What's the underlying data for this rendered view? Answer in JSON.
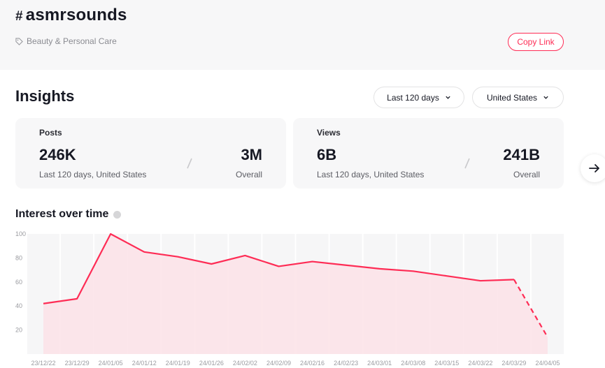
{
  "header": {
    "hash_symbol": "#",
    "hashtag": "asmrsounds",
    "industry": "Beauty & Personal Care",
    "copy_link_label": "Copy Link"
  },
  "insights": {
    "title": "Insights",
    "period_select": "Last 120 days",
    "region_select": "United States"
  },
  "cards": {
    "posts": {
      "label": "Posts",
      "recent_value": "246K",
      "recent_caption": "Last 120 days, United States",
      "overall_value": "3M",
      "overall_caption": "Overall"
    },
    "views": {
      "label": "Views",
      "recent_value": "6B",
      "recent_caption": "Last 120 days, United States",
      "overall_value": "241B",
      "overall_caption": "Overall"
    }
  },
  "icons": {
    "industry": "tag-icon",
    "select": "chevron-down-icon",
    "next": "arrow-right-icon",
    "help": "question-circle-icon"
  },
  "colors": {
    "accent": "#fe2c55",
    "area_fill": "#fbe2e8",
    "panel": "#f7f7f8"
  },
  "chart_data": {
    "type": "line",
    "title": "Interest over time",
    "xlabel": "",
    "ylabel": "",
    "ylim": [
      0,
      100
    ],
    "yticks": [
      20,
      40,
      60,
      80,
      100
    ],
    "categories": [
      "23/12/22",
      "23/12/29",
      "24/01/05",
      "24/01/12",
      "24/01/19",
      "24/01/26",
      "24/02/02",
      "24/02/09",
      "24/02/16",
      "24/02/23",
      "24/03/01",
      "24/03/08",
      "24/03/15",
      "24/03/22",
      "24/03/29",
      "24/04/05"
    ],
    "series": [
      {
        "name": "Interest",
        "values": [
          42,
          46,
          100,
          85,
          81,
          75,
          82,
          73,
          77,
          74,
          71,
          69,
          65,
          61,
          62,
          14
        ],
        "dashed_from_index": 14
      }
    ]
  }
}
